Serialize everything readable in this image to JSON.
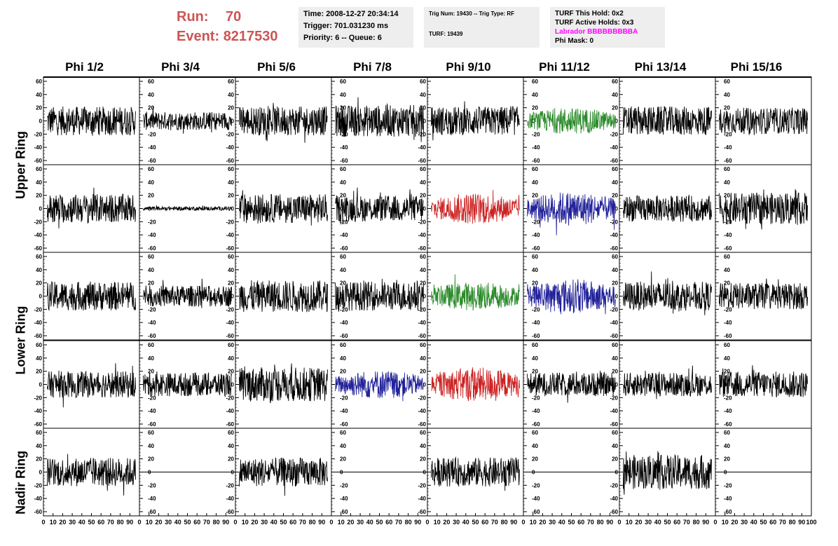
{
  "run": {
    "run_label": "Run:",
    "run_value": "70",
    "event_label": "Event:",
    "event_value": "8217530"
  },
  "info1": {
    "time": "Time: 2008-12-27 20:34:14",
    "trigger": "Trigger: 701.031230 ms",
    "priority": "Priority: 6 -- Queue: 6"
  },
  "info2": {
    "trig": "Trig Num: 19430 -- Trig Type: RF",
    "turf": "TURF: 19439"
  },
  "info3": {
    "hold": "TURF This Hold: 0x2",
    "active": "TURF Active Holds: 0x3",
    "labrador": "Labrador BBBBBBBBBA",
    "phimask": "Phi Mask: 0"
  },
  "columns": [
    "Phi 1/2",
    "Phi 3/4",
    "Phi 5/6",
    "Phi 7/8",
    "Phi 9/10",
    "Phi 11/12",
    "Phi 13/14",
    "Phi 15/16"
  ],
  "row_labels": {
    "upper": "Upper Ring",
    "lower": "Lower Ring",
    "nadir": "Nadir Ring"
  },
  "colors": {
    "black": "#000000",
    "green": "#2a8a2a",
    "red": "#cc2222",
    "blue": "#22229a",
    "header_red": "#cc5555",
    "magenta": "#ff00ff",
    "info_bg": "#eeeeee"
  },
  "chart_data": {
    "type": "line",
    "rows": 5,
    "cols": 8,
    "ylim": [
      -60,
      60
    ],
    "xlim": [
      0,
      100
    ],
    "y_ticks": [
      60,
      40,
      20,
      0,
      -20,
      -40,
      -60
    ],
    "x_ticks": [
      0,
      10,
      20,
      30,
      40,
      50,
      60,
      70,
      80,
      90,
      100
    ],
    "panels": [
      {
        "row": 0,
        "col": 0,
        "color": "black",
        "amp": 22
      },
      {
        "row": 0,
        "col": 1,
        "color": "black",
        "amp": 14
      },
      {
        "row": 0,
        "col": 2,
        "color": "black",
        "amp": 22
      },
      {
        "row": 0,
        "col": 3,
        "color": "black",
        "amp": 24
      },
      {
        "row": 0,
        "col": 4,
        "color": "black",
        "amp": 22
      },
      {
        "row": 0,
        "col": 5,
        "color": "green",
        "amp": 20
      },
      {
        "row": 0,
        "col": 6,
        "color": "black",
        "amp": 22
      },
      {
        "row": 0,
        "col": 7,
        "color": "black",
        "amp": 20
      },
      {
        "row": 1,
        "col": 0,
        "color": "black",
        "amp": 22
      },
      {
        "row": 1,
        "col": 1,
        "color": "black",
        "amp": 3
      },
      {
        "row": 1,
        "col": 2,
        "color": "black",
        "amp": 22
      },
      {
        "row": 1,
        "col": 3,
        "color": "black",
        "amp": 20
      },
      {
        "row": 1,
        "col": 4,
        "color": "red",
        "amp": 24
      },
      {
        "row": 1,
        "col": 5,
        "color": "blue",
        "amp": 26
      },
      {
        "row": 1,
        "col": 6,
        "color": "black",
        "amp": 20
      },
      {
        "row": 1,
        "col": 7,
        "color": "black",
        "amp": 24
      },
      {
        "row": 2,
        "col": 0,
        "color": "black",
        "amp": 22
      },
      {
        "row": 2,
        "col": 1,
        "color": "black",
        "amp": 16
      },
      {
        "row": 2,
        "col": 2,
        "color": "black",
        "amp": 24
      },
      {
        "row": 2,
        "col": 3,
        "color": "black",
        "amp": 22
      },
      {
        "row": 2,
        "col": 4,
        "color": "green",
        "amp": 22
      },
      {
        "row": 2,
        "col": 5,
        "color": "blue",
        "amp": 26
      },
      {
        "row": 2,
        "col": 6,
        "color": "black",
        "amp": 22
      },
      {
        "row": 2,
        "col": 7,
        "color": "black",
        "amp": 20
      },
      {
        "row": 3,
        "col": 0,
        "color": "black",
        "amp": 20
      },
      {
        "row": 3,
        "col": 1,
        "color": "black",
        "amp": 18
      },
      {
        "row": 3,
        "col": 2,
        "color": "black",
        "amp": 26
      },
      {
        "row": 3,
        "col": 3,
        "color": "blue",
        "amp": 22
      },
      {
        "row": 3,
        "col": 4,
        "color": "red",
        "amp": 26
      },
      {
        "row": 3,
        "col": 5,
        "color": "black",
        "amp": 18
      },
      {
        "row": 3,
        "col": 6,
        "color": "black",
        "amp": 18
      },
      {
        "row": 3,
        "col": 7,
        "color": "black",
        "amp": 20
      },
      {
        "row": 4,
        "col": 0,
        "color": "black",
        "amp": 22
      },
      {
        "row": 4,
        "col": 1,
        "color": "black",
        "amp": 0
      },
      {
        "row": 4,
        "col": 2,
        "color": "black",
        "amp": 22
      },
      {
        "row": 4,
        "col": 3,
        "color": "black",
        "amp": 0
      },
      {
        "row": 4,
        "col": 4,
        "color": "black",
        "amp": 22
      },
      {
        "row": 4,
        "col": 5,
        "color": "black",
        "amp": 0
      },
      {
        "row": 4,
        "col": 6,
        "color": "black",
        "amp": 26
      },
      {
        "row": 4,
        "col": 7,
        "color": "black",
        "amp": 0
      }
    ]
  }
}
